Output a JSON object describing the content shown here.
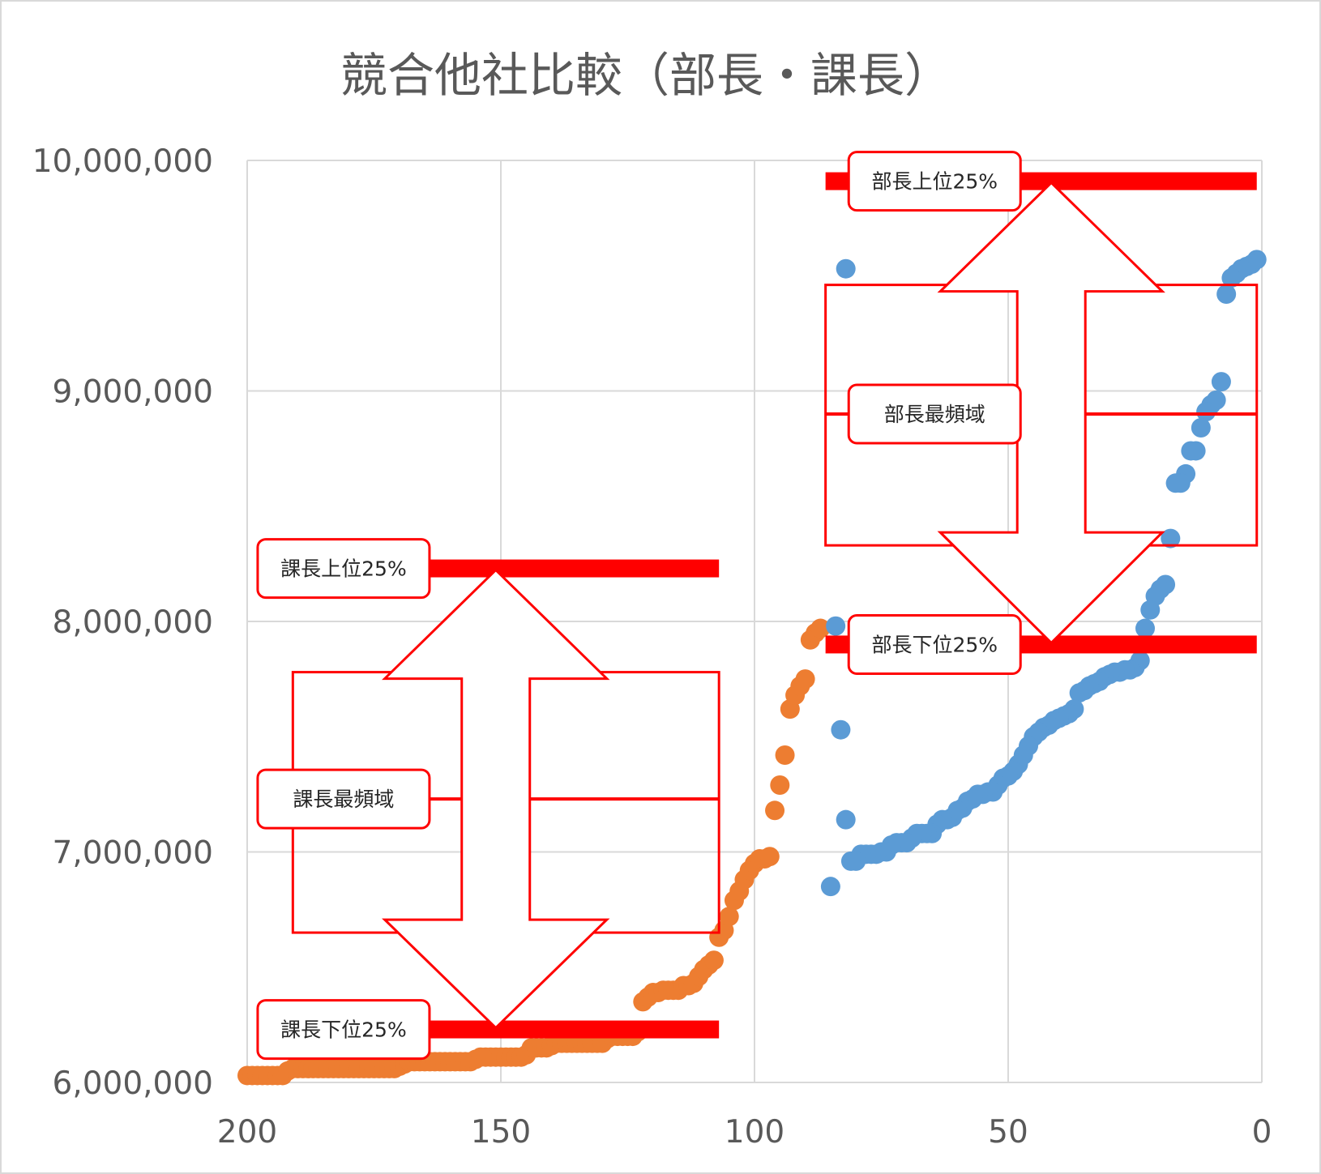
{
  "chart_data": {
    "type": "scatter",
    "title": "競合他社比較（部長・課長）",
    "xlim": [
      200,
      0
    ],
    "ylim": [
      6000000,
      10000000
    ],
    "x_ticks": [
      200,
      150,
      100,
      50,
      0
    ],
    "x_tick_labels": [
      "200",
      "150",
      "100",
      "50",
      "0"
    ],
    "y_ticks": [
      6000000,
      7000000,
      8000000,
      9000000,
      10000000
    ],
    "y_tick_labels": [
      "6,000,000",
      "7,000,000",
      "8,000,000",
      "9,000,000",
      "10,000,000"
    ],
    "grid": true,
    "colors": {
      "bucho": "#5b9bd5",
      "kacho": "#ed7d31",
      "annotation": "#ff0000"
    },
    "series": [
      {
        "key": "bucho",
        "points": [
          [
            1,
            9570000
          ],
          [
            2,
            9550000
          ],
          [
            3,
            9540000
          ],
          [
            4,
            9530000
          ],
          [
            5,
            9510000
          ],
          [
            6,
            9490000
          ],
          [
            7,
            9420000
          ],
          [
            8,
            9040000
          ],
          [
            9,
            8960000
          ],
          [
            10,
            8940000
          ],
          [
            11,
            8910000
          ],
          [
            12,
            8840000
          ],
          [
            13,
            8740000
          ],
          [
            14,
            8740000
          ],
          [
            15,
            8640000
          ],
          [
            16,
            8600000
          ],
          [
            17,
            8600000
          ],
          [
            18,
            8360000
          ],
          [
            19,
            8160000
          ],
          [
            20,
            8140000
          ],
          [
            21,
            8110000
          ],
          [
            22,
            8050000
          ],
          [
            23,
            7970000
          ],
          [
            24,
            7830000
          ],
          [
            25,
            7800000
          ],
          [
            26,
            7790000
          ],
          [
            27,
            7790000
          ],
          [
            28,
            7780000
          ],
          [
            29,
            7780000
          ],
          [
            30,
            7770000
          ],
          [
            31,
            7760000
          ],
          [
            32,
            7740000
          ],
          [
            33,
            7730000
          ],
          [
            34,
            7720000
          ],
          [
            35,
            7700000
          ],
          [
            36,
            7690000
          ],
          [
            37,
            7620000
          ],
          [
            38,
            7600000
          ],
          [
            39,
            7590000
          ],
          [
            40,
            7580000
          ],
          [
            41,
            7570000
          ],
          [
            42,
            7550000
          ],
          [
            43,
            7540000
          ],
          [
            44,
            7520000
          ],
          [
            45,
            7500000
          ],
          [
            46,
            7460000
          ],
          [
            47,
            7420000
          ],
          [
            48,
            7380000
          ],
          [
            49,
            7350000
          ],
          [
            50,
            7330000
          ],
          [
            51,
            7320000
          ],
          [
            52,
            7290000
          ],
          [
            53,
            7260000
          ],
          [
            54,
            7260000
          ],
          [
            55,
            7250000
          ],
          [
            56,
            7250000
          ],
          [
            57,
            7230000
          ],
          [
            58,
            7220000
          ],
          [
            59,
            7190000
          ],
          [
            60,
            7180000
          ],
          [
            61,
            7150000
          ],
          [
            62,
            7140000
          ],
          [
            63,
            7140000
          ],
          [
            64,
            7120000
          ],
          [
            65,
            7080000
          ],
          [
            66,
            7080000
          ],
          [
            67,
            7080000
          ],
          [
            68,
            7080000
          ],
          [
            69,
            7060000
          ],
          [
            70,
            7040000
          ],
          [
            71,
            7040000
          ],
          [
            72,
            7040000
          ],
          [
            73,
            7030000
          ],
          [
            74,
            7000000
          ],
          [
            75,
            7000000
          ],
          [
            76,
            6990000
          ],
          [
            77,
            6990000
          ],
          [
            78,
            6990000
          ],
          [
            79,
            6990000
          ],
          [
            80,
            6960000
          ],
          [
            81,
            6960000
          ],
          [
            82,
            7140000
          ],
          [
            83,
            7530000
          ],
          [
            84,
            7980000
          ],
          [
            85,
            6850000
          ],
          [
            82,
            9530000
          ]
        ]
      },
      {
        "key": "kacho",
        "points": [
          [
            200,
            6030000
          ],
          [
            199,
            6030000
          ],
          [
            198,
            6030000
          ],
          [
            197,
            6030000
          ],
          [
            196,
            6030000
          ],
          [
            195,
            6030000
          ],
          [
            194,
            6030000
          ],
          [
            193,
            6030000
          ],
          [
            192,
            6050000
          ],
          [
            191,
            6060000
          ],
          [
            190,
            6060000
          ],
          [
            189,
            6060000
          ],
          [
            188,
            6060000
          ],
          [
            187,
            6060000
          ],
          [
            186,
            6060000
          ],
          [
            185,
            6060000
          ],
          [
            184,
            6060000
          ],
          [
            183,
            6060000
          ],
          [
            182,
            6060000
          ],
          [
            181,
            6060000
          ],
          [
            180,
            6060000
          ],
          [
            179,
            6060000
          ],
          [
            178,
            6060000
          ],
          [
            177,
            6060000
          ],
          [
            176,
            6060000
          ],
          [
            175,
            6060000
          ],
          [
            174,
            6060000
          ],
          [
            173,
            6060000
          ],
          [
            172,
            6060000
          ],
          [
            171,
            6060000
          ],
          [
            170,
            6070000
          ],
          [
            169,
            6080000
          ],
          [
            168,
            6090000
          ],
          [
            167,
            6090000
          ],
          [
            166,
            6090000
          ],
          [
            165,
            6090000
          ],
          [
            164,
            6090000
          ],
          [
            163,
            6090000
          ],
          [
            162,
            6090000
          ],
          [
            161,
            6090000
          ],
          [
            160,
            6090000
          ],
          [
            159,
            6090000
          ],
          [
            158,
            6090000
          ],
          [
            157,
            6090000
          ],
          [
            156,
            6090000
          ],
          [
            155,
            6100000
          ],
          [
            154,
            6110000
          ],
          [
            153,
            6110000
          ],
          [
            152,
            6110000
          ],
          [
            151,
            6110000
          ],
          [
            150,
            6110000
          ],
          [
            149,
            6110000
          ],
          [
            148,
            6110000
          ],
          [
            147,
            6110000
          ],
          [
            146,
            6110000
          ],
          [
            145,
            6120000
          ],
          [
            144,
            6150000
          ],
          [
            143,
            6150000
          ],
          [
            142,
            6150000
          ],
          [
            141,
            6150000
          ],
          [
            140,
            6160000
          ],
          [
            139,
            6170000
          ],
          [
            138,
            6170000
          ],
          [
            137,
            6170000
          ],
          [
            136,
            6170000
          ],
          [
            135,
            6170000
          ],
          [
            134,
            6170000
          ],
          [
            133,
            6170000
          ],
          [
            132,
            6170000
          ],
          [
            131,
            6170000
          ],
          [
            130,
            6170000
          ],
          [
            129,
            6190000
          ],
          [
            128,
            6200000
          ],
          [
            127,
            6200000
          ],
          [
            126,
            6200000
          ],
          [
            125,
            6200000
          ],
          [
            124,
            6200000
          ],
          [
            123,
            6220000
          ],
          [
            122,
            6350000
          ],
          [
            121,
            6370000
          ],
          [
            120,
            6390000
          ],
          [
            119,
            6390000
          ],
          [
            118,
            6400000
          ],
          [
            117,
            6400000
          ],
          [
            116,
            6400000
          ],
          [
            115,
            6400000
          ],
          [
            114,
            6420000
          ],
          [
            113,
            6420000
          ],
          [
            112,
            6430000
          ],
          [
            111,
            6460000
          ],
          [
            110,
            6490000
          ],
          [
            109,
            6510000
          ],
          [
            108,
            6530000
          ],
          [
            107,
            6630000
          ],
          [
            106,
            6660000
          ],
          [
            105,
            6720000
          ],
          [
            104,
            6790000
          ],
          [
            103,
            6830000
          ],
          [
            102,
            6880000
          ],
          [
            101,
            6920000
          ],
          [
            100,
            6950000
          ],
          [
            99,
            6970000
          ],
          [
            98,
            6970000
          ],
          [
            97,
            6980000
          ],
          [
            96,
            7180000
          ],
          [
            95,
            7290000
          ],
          [
            94,
            7420000
          ],
          [
            93,
            7620000
          ],
          [
            92,
            7680000
          ],
          [
            91,
            7720000
          ],
          [
            90,
            7750000
          ],
          [
            89,
            7920000
          ],
          [
            88,
            7950000
          ],
          [
            87,
            7970000
          ]
        ]
      }
    ],
    "annotations": {
      "kacho": {
        "x_range": [
          191,
          107
        ],
        "upper": 8230000,
        "mode": 7230000,
        "lower": 6230000,
        "box_range": [
          7780000,
          6650000
        ],
        "labels": {
          "upper": "課長上位25%",
          "mode": "課長最頻域",
          "lower": "課長下位25%"
        }
      },
      "bucho": {
        "x_range": [
          86,
          1
        ],
        "upper": 9910000,
        "mode": 8900000,
        "lower": 7900000,
        "box_range": [
          9460000,
          8330000
        ],
        "labels": {
          "upper": "部長上位25%",
          "mode": "部長最頻域",
          "lower": "部長下位25%"
        }
      }
    }
  }
}
